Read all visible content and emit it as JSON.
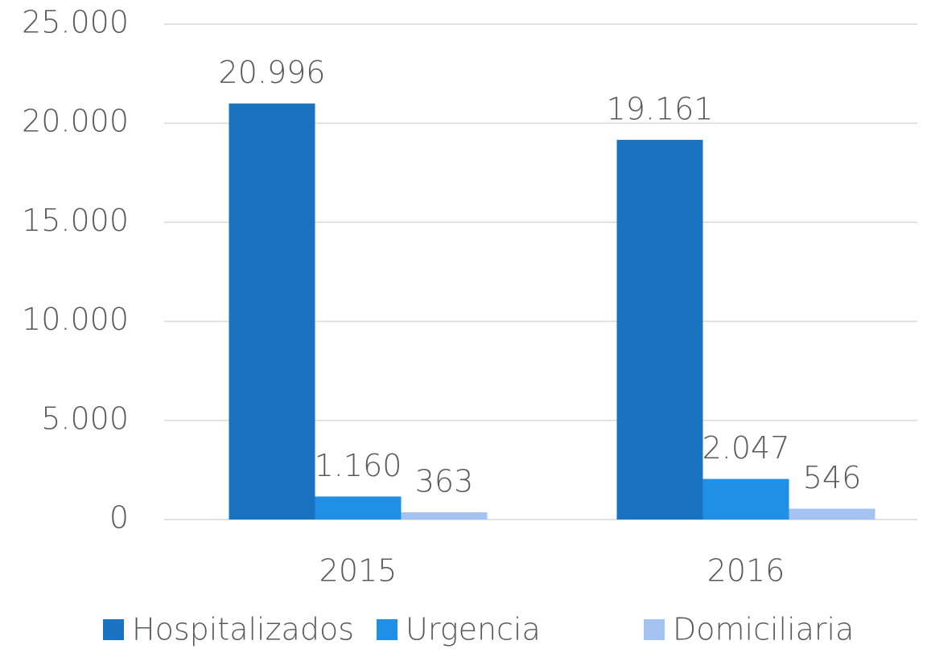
{
  "chart_data": {
    "type": "bar",
    "categories": [
      "2015",
      "2016"
    ],
    "series": [
      {
        "name": "Hospitalizados",
        "color": "#1a73c0",
        "values": [
          20996,
          19161
        ],
        "value_labels": [
          "20.996",
          "19.161"
        ]
      },
      {
        "name": "Urgencia",
        "color": "#2090e6",
        "values": [
          1160,
          2047
        ],
        "value_labels": [
          "1.160",
          "2.047"
        ]
      },
      {
        "name": "Domiciliaria",
        "color": "#a4c2f2",
        "values": [
          363,
          546
        ],
        "value_labels": [
          "363",
          "546"
        ]
      }
    ],
    "ylim": [
      0,
      25000
    ],
    "yticks": [
      0,
      {
        "value": 5000,
        "label": "5.000"
      },
      {
        "value": 10000,
        "label": "10.000"
      },
      {
        "value": 15000,
        "label": "15.000"
      },
      {
        "value": 20000,
        "label": "20.000"
      },
      {
        "value": 25000,
        "label": "25.000"
      }
    ],
    "grid": true,
    "legend": "bottom"
  }
}
